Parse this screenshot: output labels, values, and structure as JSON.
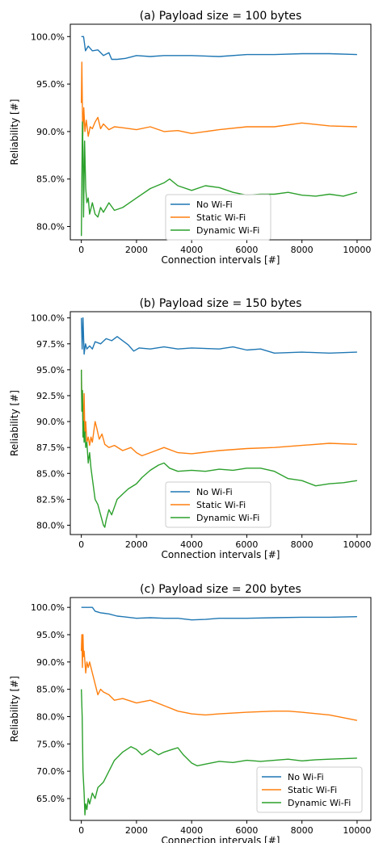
{
  "chart_data": [
    {
      "type": "line",
      "title": "(a) Payload size = 100 bytes",
      "xlabel": "Connection intervals [#]",
      "ylabel": "Reliability [#]",
      "xlim": [
        -400,
        10500
      ],
      "ylim": [
        78.6,
        101.3
      ],
      "xticks": [
        0,
        2000,
        4000,
        6000,
        8000,
        10000
      ],
      "yticks": [
        80,
        85,
        90,
        95,
        100
      ],
      "ytick_labels": [
        "80.0%",
        "85.0%",
        "90.0%",
        "95.0%",
        "100.0%"
      ],
      "legend_position": "lower-center",
      "grid": false,
      "series": [
        {
          "name": "No Wi-Fi",
          "color": "#1f77b4",
          "x": [
            0,
            80,
            150,
            250,
            400,
            600,
            800,
            1000,
            1100,
            1300,
            1600,
            2000,
            2500,
            3000,
            4000,
            5000,
            6000,
            7000,
            8000,
            9000,
            10000
          ],
          "y": [
            100,
            100,
            98.5,
            99.0,
            98.5,
            98.6,
            98.0,
            98.3,
            97.6,
            97.6,
            97.7,
            98.0,
            97.9,
            98.0,
            98.0,
            97.9,
            98.1,
            98.1,
            98.2,
            98.2,
            98.1
          ]
        },
        {
          "name": "Static Wi-Fi",
          "color": "#ff7f0e",
          "x": [
            0,
            20,
            50,
            90,
            130,
            180,
            250,
            320,
            400,
            500,
            600,
            700,
            800,
            1000,
            1200,
            1500,
            2000,
            2500,
            3000,
            3500,
            4000,
            5000,
            6000,
            7000,
            8000,
            9000,
            10000
          ],
          "y": [
            93.0,
            97.3,
            89.5,
            92.5,
            90.0,
            91.2,
            89.5,
            90.5,
            90.3,
            91.0,
            91.5,
            90.3,
            90.8,
            90.2,
            90.5,
            90.4,
            90.2,
            90.5,
            90.0,
            90.1,
            89.8,
            90.2,
            90.5,
            90.5,
            90.9,
            90.6,
            90.5
          ]
        },
        {
          "name": "Dynamic Wi-Fi",
          "color": "#2ca02c",
          "x": [
            0,
            20,
            40,
            60,
            80,
            120,
            160,
            200,
            250,
            300,
            400,
            500,
            600,
            700,
            800,
            1000,
            1200,
            1500,
            2000,
            2500,
            3000,
            3200,
            3500,
            4000,
            4500,
            5000,
            5500,
            6000,
            6500,
            7000,
            7500,
            8000,
            8500,
            9000,
            9500,
            10000
          ],
          "y": [
            79.0,
            85.0,
            91.0,
            88.0,
            81.0,
            89.0,
            84.0,
            82.5,
            83.0,
            81.3,
            82.5,
            81.3,
            81.0,
            82.0,
            81.5,
            82.5,
            81.7,
            82.0,
            83.0,
            84.0,
            84.6,
            85.0,
            84.3,
            83.8,
            84.3,
            84.1,
            83.6,
            83.3,
            83.4,
            83.4,
            83.6,
            83.3,
            83.2,
            83.4,
            83.2,
            83.6
          ]
        }
      ]
    },
    {
      "type": "line",
      "title": "(b) Payload size = 150 bytes",
      "xlabel": "Connection intervals [#]",
      "ylabel": "Reliability [#]",
      "xlim": [
        -400,
        10500
      ],
      "ylim": [
        79.1,
        100.6
      ],
      "xticks": [
        0,
        2000,
        4000,
        6000,
        8000,
        10000
      ],
      "yticks": [
        80,
        82.5,
        85,
        87.5,
        90,
        92.5,
        95,
        97.5,
        100
      ],
      "ytick_labels": [
        "80.0%",
        "82.5%",
        "85.0%",
        "87.5%",
        "90.0%",
        "92.5%",
        "95.0%",
        "97.5%",
        "100.0%"
      ],
      "legend_position": "lower-center",
      "grid": false,
      "series": [
        {
          "name": "No Wi-Fi",
          "color": "#1f77b4",
          "x": [
            0,
            30,
            60,
            100,
            150,
            200,
            300,
            400,
            500,
            700,
            900,
            1100,
            1300,
            1500,
            1700,
            1900,
            2100,
            2500,
            3000,
            3500,
            4000,
            5000,
            5500,
            6000,
            6500,
            7000,
            8000,
            9000,
            10000
          ],
          "y": [
            100,
            97.0,
            100,
            96.5,
            97.5,
            97.0,
            97.3,
            97.0,
            97.7,
            97.5,
            98.0,
            97.8,
            98.2,
            97.8,
            97.4,
            96.8,
            97.1,
            97.0,
            97.2,
            97.0,
            97.1,
            97.0,
            97.2,
            96.9,
            97.0,
            96.6,
            96.7,
            96.6,
            96.7
          ]
        },
        {
          "name": "Static Wi-Fi",
          "color": "#ff7f0e",
          "x": [
            0,
            20,
            40,
            70,
            100,
            130,
            160,
            200,
            250,
            300,
            350,
            400,
            500,
            550,
            650,
            750,
            850,
            1000,
            1200,
            1500,
            1800,
            2000,
            2200,
            2500,
            3000,
            3500,
            4000,
            5000,
            6000,
            7000,
            8000,
            9000,
            10000
          ],
          "y": [
            95.0,
            91.0,
            93.0,
            89.0,
            92.7,
            88.5,
            90.0,
            88.0,
            88.5,
            87.7,
            88.5,
            88.0,
            90.0,
            89.5,
            88.3,
            88.8,
            87.8,
            87.5,
            87.7,
            87.2,
            87.5,
            87.0,
            86.7,
            87.0,
            87.5,
            87.0,
            86.9,
            87.2,
            87.4,
            87.5,
            87.7,
            87.9,
            87.8
          ]
        },
        {
          "name": "Dynamic Wi-Fi",
          "color": "#2ca02c",
          "x": [
            0,
            20,
            40,
            60,
            80,
            100,
            130,
            160,
            200,
            250,
            300,
            350,
            400,
            500,
            600,
            700,
            800,
            850,
            900,
            1000,
            1100,
            1300,
            1500,
            1700,
            2000,
            2200,
            2500,
            2800,
            3000,
            3200,
            3500,
            4000,
            4500,
            5000,
            5500,
            6000,
            6500,
            7000,
            7500,
            8000,
            8500,
            9000,
            9500,
            10000
          ],
          "y": [
            95.0,
            91.0,
            93.0,
            88.5,
            90.0,
            88.0,
            89.0,
            87.5,
            88.0,
            86.0,
            87.0,
            85.5,
            84.5,
            82.5,
            82.0,
            81.0,
            80.0,
            79.8,
            80.5,
            81.5,
            81.0,
            82.5,
            83.0,
            83.5,
            84.0,
            84.6,
            85.3,
            85.8,
            86.0,
            85.5,
            85.2,
            85.3,
            85.2,
            85.4,
            85.3,
            85.5,
            85.5,
            85.2,
            84.5,
            84.3,
            83.8,
            84.0,
            84.1,
            84.3
          ]
        }
      ]
    },
    {
      "type": "line",
      "title": "(c) Payload size = 200 bytes",
      "xlabel": "Connection intervals [#]",
      "ylabel": "Reliability [#]",
      "xlim": [
        -400,
        10500
      ],
      "ylim": [
        61.0,
        101.8
      ],
      "xticks": [
        0,
        2000,
        4000,
        6000,
        8000,
        10000
      ],
      "yticks": [
        65,
        70,
        75,
        80,
        85,
        90,
        95,
        100
      ],
      "ytick_labels": [
        "65.0%",
        "70.0%",
        "75.0%",
        "80.0%",
        "85.0%",
        "90.0%",
        "95.0%",
        "100.0%"
      ],
      "legend_position": "lower-right",
      "grid": false,
      "series": [
        {
          "name": "No Wi-Fi",
          "color": "#1f77b4",
          "x": [
            0,
            400,
            500,
            700,
            1000,
            1300,
            1500,
            2000,
            2500,
            3000,
            3500,
            4000,
            4500,
            5000,
            6000,
            7000,
            8000,
            9000,
            10000
          ],
          "y": [
            100,
            100,
            99.3,
            99.0,
            98.8,
            98.4,
            98.3,
            98.0,
            98.1,
            98.0,
            98.0,
            97.7,
            97.8,
            98.0,
            98.0,
            98.1,
            98.2,
            98.2,
            98.3
          ]
        },
        {
          "name": "Static Wi-Fi",
          "color": "#ff7f0e",
          "x": [
            0,
            20,
            40,
            60,
            80,
            100,
            130,
            160,
            200,
            250,
            300,
            400,
            500,
            600,
            700,
            800,
            1000,
            1200,
            1500,
            2000,
            2500,
            3000,
            3500,
            4000,
            4500,
            5000,
            6000,
            7000,
            7500,
            8000,
            9000,
            10000
          ],
          "y": [
            92.0,
            95.0,
            89.0,
            95.0,
            91.0,
            92.0,
            90.0,
            88.0,
            90.0,
            89.0,
            90.0,
            88.0,
            86.0,
            84.0,
            85.0,
            84.5,
            84.0,
            83.0,
            83.3,
            82.5,
            83.0,
            82.0,
            81.0,
            80.5,
            80.3,
            80.5,
            80.8,
            81.0,
            81.0,
            80.8,
            80.3,
            79.3
          ]
        },
        {
          "name": "Dynamic Wi-Fi",
          "color": "#2ca02c",
          "x": [
            0,
            30,
            60,
            80,
            100,
            130,
            160,
            200,
            250,
            300,
            400,
            500,
            600,
            800,
            1000,
            1200,
            1500,
            1800,
            2000,
            2200,
            2500,
            2800,
            3000,
            3300,
            3500,
            3700,
            4000,
            4200,
            4500,
            5000,
            5500,
            6000,
            6500,
            7000,
            7500,
            8000,
            8500,
            9000,
            9500,
            10000
          ],
          "y": [
            85.0,
            80.0,
            70.0,
            68.0,
            66.0,
            62.0,
            64.0,
            63.0,
            65.0,
            64.0,
            66.0,
            65.0,
            67.0,
            68.0,
            70.0,
            72.0,
            73.5,
            74.5,
            74.0,
            73.0,
            74.0,
            73.0,
            73.5,
            74.0,
            74.3,
            73.0,
            71.5,
            71.0,
            71.3,
            71.8,
            71.6,
            72.0,
            71.8,
            72.0,
            72.2,
            71.9,
            72.1,
            72.2,
            72.3,
            72.4
          ]
        }
      ]
    }
  ]
}
